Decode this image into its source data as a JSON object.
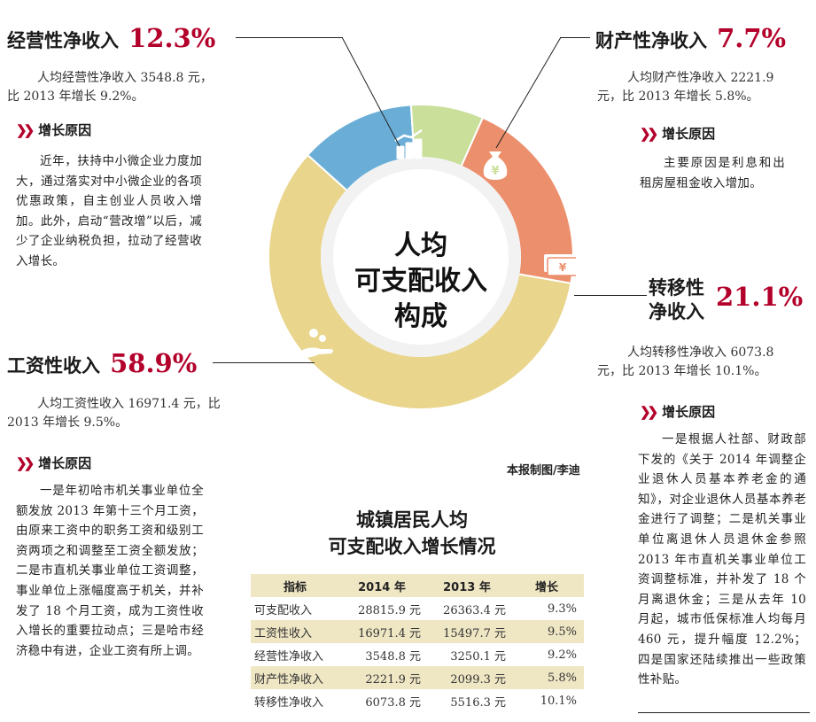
{
  "chart_data": {
    "type": "donut",
    "title": "人均可支配收入构成",
    "center_label": [
      "人均",
      "可支配收入",
      "构成"
    ],
    "categories": [
      "工资性收入",
      "经营性净收入",
      "财产性净收入",
      "转移性净收入"
    ],
    "values": [
      58.9,
      12.3,
      7.7,
      21.1
    ],
    "unit": "%"
  },
  "colors": {
    "wage": "#e9d58c",
    "business": "#6aaed7",
    "property": "#c9df9a",
    "transfer": "#ec8f6c",
    "accent": "#b3002a"
  },
  "business": {
    "label": "经营性净收入",
    "pct": "12.3%",
    "stat": [
      "人均经营性净收入 3548.8 元，",
      "比 2013 年增长 9.2%。"
    ],
    "reason_head": "增长原因",
    "reason": "近年，扶持中小微企业力度加大，通过落实对中小微企业的各项优惠政策，自主创业人员收入增加。此外，启动“营改增”以后，减少了企业纳税负担，拉动了经营收入增长。"
  },
  "property": {
    "label": "财产性净收入",
    "pct": "7.7%",
    "stat": [
      "人均财产性净收入 2221.9",
      "元，比 2013 年增长 5.8%。"
    ],
    "reason_head": "增长原因",
    "reason": "主要原因是利息和出租房屋租金收入增加。"
  },
  "transfer": {
    "label_line1": "转移性",
    "label_line2": "净收入",
    "pct": "21.1%",
    "stat": [
      "人均转移性净收入 6073.8",
      "元，比 2013 年增长 10.1%。"
    ],
    "reason_head": "增长原因",
    "reason": "一是根据人社部、财政部下发的《关于 2014 年调整企业退休人员基本养老金的通知》，对企业退休人员基本养老金进行了调整；二是机关事业单位离退休人员退休金参照 2013 年市直机关事业单位工资调整标准，并补发了 18 个月离退休金；三是从去年 10 月起，城市低保标准人均每月 460 元，提升幅度 12.2%；四是国家还陆续推出一些政策性补贴。"
  },
  "wage": {
    "label": "工资性收入",
    "pct": "58.9%",
    "stat": [
      "人均工资性收入 16971.4 元，比",
      "2013 年增长 9.5%。"
    ],
    "reason_head": "增长原因",
    "reason": "一是年初哈市机关事业单位全额发放 2013 年第十三个月工资，由原来工资中的职务工资和级别工资两项之和调整至工资全额发放；二是市直机关事业单位工资调整，事业单位上涨幅度高于机关，并补发了 18 个月工资，成为工资性收入增长的重要拉动点；三是哈市经济稳中有进，企业工资有所上调。"
  },
  "credit": "本报制图/李迪",
  "table": {
    "title_line1": "城镇居民人均",
    "title_line2": "可支配收入增长情况",
    "headers": [
      "指标",
      "2014 年",
      "2013 年",
      "增长"
    ],
    "rows": [
      [
        "可支配收入",
        "28815.9 元",
        "26363.4 元",
        "9.3%"
      ],
      [
        "工资性收入",
        "16971.4 元",
        "15497.7 元",
        "9.5%"
      ],
      [
        "经营性净收入",
        "3548.8 元",
        "3250.1 元",
        "9.2%"
      ],
      [
        "财产性净收入",
        "2221.9 元",
        "2099.3 元",
        "5.8%"
      ],
      [
        "转移性净收入",
        "6073.8 元",
        "5516.3 元",
        "10.1%"
      ]
    ]
  },
  "icons": [
    "coins-stack-icon",
    "money-bag-icon",
    "banknotes-icon",
    "hand-coins-icon"
  ]
}
